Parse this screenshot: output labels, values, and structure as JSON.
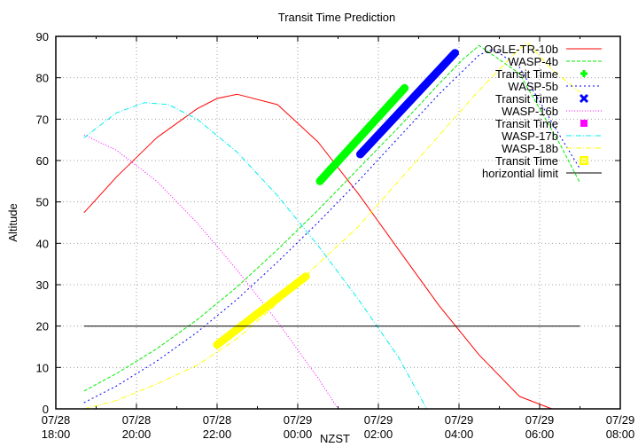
{
  "chart_data": {
    "type": "line",
    "title": "Transit Time Prediction",
    "xlabel": "NZST",
    "ylabel": "Altitude",
    "ylim": [
      0,
      90
    ],
    "xlim_hours_from_0728_1800": [
      0,
      14
    ],
    "grid": true,
    "legend_position": "top-right inside",
    "y_ticks": [
      "0",
      "10",
      "20",
      "30",
      "40",
      "50",
      "60",
      "70",
      "80",
      "90"
    ],
    "x_ticks": [
      {
        "date": "07/28",
        "time": "18:00"
      },
      {
        "date": "07/28",
        "time": "20:00"
      },
      {
        "date": "07/28",
        "time": "22:00"
      },
      {
        "date": "07/29",
        "time": "00:00"
      },
      {
        "date": "07/29",
        "time": "02:00"
      },
      {
        "date": "07/29",
        "time": "04:00"
      },
      {
        "date": "07/29",
        "time": "06:00"
      },
      {
        "date": "07/29",
        "time": "08:00"
      }
    ],
    "series": [
      {
        "name": "OGLE-TR-10b",
        "color": "#ff0000",
        "dash": "",
        "kind": "line",
        "x": [
          0.7,
          1.5,
          2.5,
          3.5,
          4.0,
          4.5,
          5.5,
          6.5,
          7.5,
          8.5,
          9.5,
          10.5,
          11.5,
          12.3
        ],
        "y": [
          47.4,
          56,
          65.5,
          72.5,
          75,
          76,
          73.5,
          64.5,
          52,
          38.5,
          25,
          13,
          3,
          0
        ]
      },
      {
        "name": "WASP-4b",
        "color": "#00ee00",
        "dash": "4,2",
        "kind": "line",
        "x": [
          0.7,
          1.5,
          2.5,
          3.5,
          4.5,
          5.5,
          6.5,
          7.5,
          8.5,
          9.5,
          10.1,
          10.5,
          11.5,
          12.5,
          13.0
        ],
        "y": [
          4.3,
          8.5,
          14.5,
          21.5,
          29.5,
          38.5,
          48,
          58,
          68,
          78.5,
          84.5,
          87.8,
          81,
          64,
          54.6
        ]
      },
      {
        "name": "Transit Time",
        "color": "#00ff00",
        "dash": "",
        "kind": "transit",
        "x": [
          6.55,
          8.65
        ],
        "y": [
          55,
          77.5
        ]
      },
      {
        "name": "WASP-5b",
        "color": "#0000ff",
        "dash": "2,3",
        "kind": "line",
        "x": [
          0.7,
          1.5,
          2.5,
          3.5,
          4.5,
          5.5,
          6.5,
          7.5,
          8.5,
          9.5,
          10.5,
          10.85,
          11.5,
          12.5,
          13.0
        ],
        "y": [
          1.5,
          5.5,
          11.5,
          18.5,
          26.5,
          35.5,
          45,
          55,
          65.5,
          76,
          85.5,
          87,
          82.5,
          66,
          58
        ]
      },
      {
        "name": "Transit Time",
        "color": "#0000ff",
        "dash": "",
        "kind": "transit",
        "x": [
          7.55,
          9.9
        ],
        "y": [
          61.5,
          86
        ]
      },
      {
        "name": "WASP-16b",
        "color": "#ff00ff",
        "dash": "1,2",
        "kind": "line",
        "x": [
          0.7,
          1.5,
          2.5,
          3.5,
          4.5,
          5.5,
          6.5,
          7.0
        ],
        "y": [
          66.2,
          62.5,
          55,
          45,
          33.5,
          21,
          7.5,
          0
        ]
      },
      {
        "name": "Transit Time",
        "color": "#ff00ff",
        "dash": "",
        "kind": "transit",
        "x": [],
        "y": []
      },
      {
        "name": "WASP-17b",
        "color": "#00eeee",
        "dash": "6,2,1,2",
        "kind": "line",
        "x": [
          0.7,
          1.5,
          2.2,
          2.8,
          3.5,
          4.5,
          5.5,
          6.5,
          7.5,
          8.5,
          9.2
        ],
        "y": [
          65.5,
          71.5,
          74,
          73.5,
          70,
          62,
          51.5,
          39.5,
          26.5,
          12.5,
          0
        ]
      },
      {
        "name": "WASP-18b",
        "color": "#ffff00",
        "dash": "6,2,1,2",
        "kind": "line",
        "x": [
          0.7,
          1.5,
          2.5,
          3.5,
          4.5,
          5.5,
          6.5,
          7.5,
          8.5,
          9.5,
          10.5,
          11.5,
          11.7,
          12.3,
          13.0
        ],
        "y": [
          0,
          2,
          6,
          10.5,
          17,
          25.5,
          35,
          44,
          55,
          66,
          77,
          87,
          88.5,
          82,
          76.5
        ]
      },
      {
        "name": "Transit Time",
        "color": "#ffff00",
        "dash": "",
        "kind": "transit",
        "x": [
          4.0,
          6.2
        ],
        "y": [
          15.5,
          32
        ]
      },
      {
        "name": "horizontial limit",
        "color": "#000000",
        "dash": "",
        "kind": "line",
        "x": [
          0.7,
          13.0
        ],
        "y": [
          20,
          20
        ]
      }
    ]
  },
  "legend": {
    "items": [
      {
        "label": "OGLE-TR-10b",
        "color": "#ff0000",
        "symbol": "line",
        "dash": ""
      },
      {
        "label": "WASP-4b",
        "color": "#00ee00",
        "symbol": "line",
        "dash": "4,2"
      },
      {
        "label": "Transit Time",
        "color": "#00ff00",
        "symbol": "plus"
      },
      {
        "label": "WASP-5b",
        "color": "#0000ff",
        "symbol": "line",
        "dash": "2,3"
      },
      {
        "label": "Transit Time",
        "color": "#0000ff",
        "symbol": "cross"
      },
      {
        "label": "WASP-16b",
        "color": "#ff00ff",
        "symbol": "line",
        "dash": "1,2"
      },
      {
        "label": "Transit Time",
        "color": "#ff00ff",
        "symbol": "square"
      },
      {
        "label": "WASP-17b",
        "color": "#00eeee",
        "symbol": "line",
        "dash": "6,2,1,2"
      },
      {
        "label": "WASP-18b",
        "color": "#ffff00",
        "symbol": "line",
        "dash": "6,2,1,2"
      },
      {
        "label": "Transit Time",
        "color": "#ffff00",
        "symbol": "box"
      },
      {
        "label": "horizontial limit",
        "color": "#000000",
        "symbol": "line",
        "dash": ""
      }
    ]
  }
}
